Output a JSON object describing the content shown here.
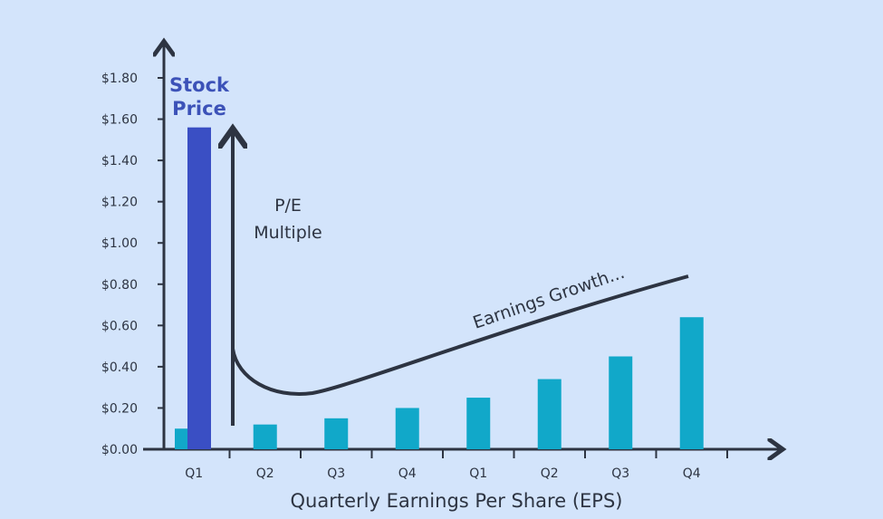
{
  "chart_data": {
    "type": "bar",
    "categories": [
      "Q1",
      "Q2",
      "Q3",
      "Q4",
      "Q1",
      "Q2",
      "Q3",
      "Q4"
    ],
    "series": [
      {
        "name": "Quarterly Earnings Per Share (EPS)",
        "values": [
          0.1,
          0.12,
          0.15,
          0.2,
          0.25,
          0.34,
          0.45,
          0.64
        ],
        "color": "#11a8c9"
      },
      {
        "name": "Stock Price",
        "values": [
          1.56,
          null,
          null,
          null,
          null,
          null,
          null,
          null
        ],
        "color": "#3a4fc4"
      }
    ],
    "yticks": [
      "$0.00",
      "$0.20",
      "$0.40",
      "$0.60",
      "$0.80",
      "$1.00",
      "$1.20",
      "$1.40",
      "$1.60",
      "$1.80"
    ],
    "ylim": [
      0,
      1.8
    ],
    "xlabel": "Quarterly Earnings Per Share (EPS)",
    "ylabel": "",
    "grid": false,
    "annotations": {
      "stock_price": [
        "Stock",
        "Price"
      ],
      "pe_multiple": [
        "P/E",
        "Multiple"
      ],
      "earnings_growth": "Earnings Growth..."
    },
    "colors": {
      "axis": "#2d3442",
      "background": "#d3e4fb"
    }
  }
}
